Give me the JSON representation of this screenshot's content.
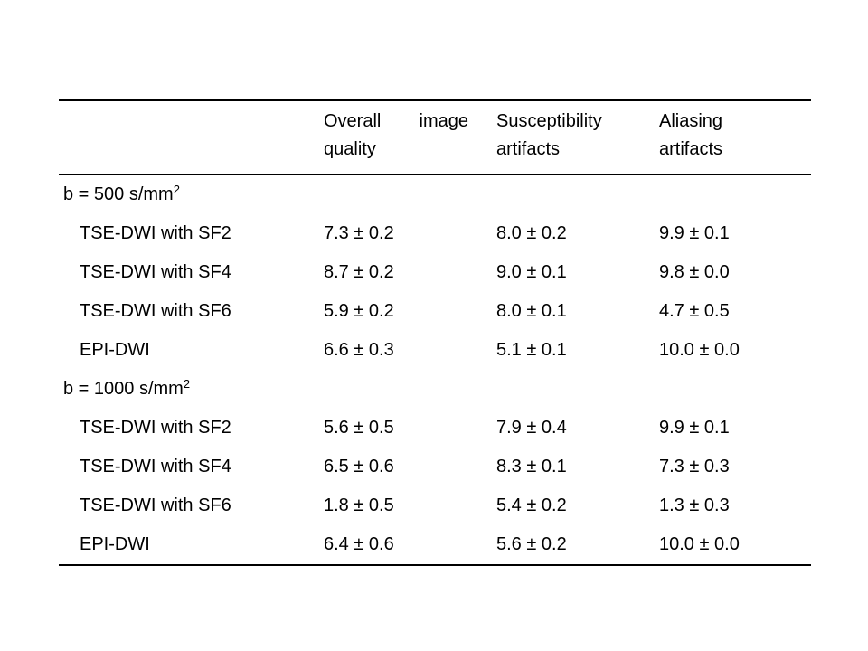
{
  "page": {
    "background": "#ffffff",
    "text_color": "#000000",
    "rule_color": "#000000"
  },
  "table": {
    "header": {
      "col1": "",
      "col2": {
        "word1": "Overall",
        "word2": "image",
        "line2": "quality"
      },
      "col3": {
        "line1": "Susceptibility",
        "line2": "artifacts"
      },
      "col4": {
        "line1": "Aliasing",
        "line2": "artifacts"
      }
    },
    "rows": [
      {
        "type": "section",
        "label": "b = 500 s/mm",
        "sup": "2"
      },
      {
        "type": "data",
        "label": "TSE-DWI with SF2",
        "values": [
          "7.3 ± 0.2",
          "8.0 ± 0.2",
          "9.9 ± 0.1"
        ]
      },
      {
        "type": "data",
        "label": "TSE-DWI with SF4",
        "values": [
          "8.7 ± 0.2",
          "9.0 ± 0.1",
          "9.8 ± 0.0"
        ]
      },
      {
        "type": "data",
        "label": "TSE-DWI with SF6",
        "values": [
          "5.9 ± 0.2",
          "8.0 ± 0.1",
          "4.7 ± 0.5"
        ]
      },
      {
        "type": "data",
        "label": "EPI-DWI",
        "values": [
          "6.6 ± 0.3",
          "5.1 ± 0.1",
          "10.0 ± 0.0"
        ]
      },
      {
        "type": "section",
        "label": "b = 1000 s/mm",
        "sup": "2"
      },
      {
        "type": "data",
        "label": "TSE-DWI with SF2",
        "values": [
          "5.6 ± 0.5",
          "7.9 ± 0.4",
          "9.9 ± 0.1"
        ]
      },
      {
        "type": "data",
        "label": "TSE-DWI with SF4",
        "values": [
          "6.5 ± 0.6",
          "8.3 ± 0.1",
          "7.3 ± 0.3"
        ]
      },
      {
        "type": "data",
        "label": "TSE-DWI with SF6",
        "values": [
          "1.8 ± 0.5",
          "5.4 ± 0.2",
          "1.3 ± 0.3"
        ]
      },
      {
        "type": "data",
        "label": "EPI-DWI",
        "values": [
          "6.4 ± 0.6",
          "5.6 ± 0.2",
          "10.0 ± 0.0"
        ]
      }
    ]
  },
  "chart_data": {
    "type": "table",
    "columns": [
      "Overall image quality",
      "Susceptibility artifacts",
      "Aliasing artifacts"
    ],
    "sections": [
      {
        "label": "b = 500 s/mm2",
        "rows": [
          {
            "method": "TSE-DWI with SF2",
            "mean": [
              7.3,
              8.0,
              9.9
            ],
            "sd": [
              0.2,
              0.2,
              0.1
            ]
          },
          {
            "method": "TSE-DWI with SF4",
            "mean": [
              8.7,
              9.0,
              9.8
            ],
            "sd": [
              0.2,
              0.1,
              0.0
            ]
          },
          {
            "method": "TSE-DWI with SF6",
            "mean": [
              5.9,
              8.0,
              4.7
            ],
            "sd": [
              0.2,
              0.1,
              0.5
            ]
          },
          {
            "method": "EPI-DWI",
            "mean": [
              6.6,
              5.1,
              10.0
            ],
            "sd": [
              0.3,
              0.1,
              0.0
            ]
          }
        ]
      },
      {
        "label": "b = 1000 s/mm2",
        "rows": [
          {
            "method": "TSE-DWI with SF2",
            "mean": [
              5.6,
              7.9,
              9.9
            ],
            "sd": [
              0.5,
              0.4,
              0.1
            ]
          },
          {
            "method": "TSE-DWI with SF4",
            "mean": [
              6.5,
              8.3,
              7.3
            ],
            "sd": [
              0.6,
              0.1,
              0.3
            ]
          },
          {
            "method": "TSE-DWI with SF6",
            "mean": [
              1.8,
              5.4,
              1.3
            ],
            "sd": [
              0.5,
              0.2,
              0.3
            ]
          },
          {
            "method": "EPI-DWI",
            "mean": [
              6.4,
              5.6,
              10.0
            ],
            "sd": [
              0.6,
              0.2,
              0.0
            ]
          }
        ]
      }
    ]
  }
}
